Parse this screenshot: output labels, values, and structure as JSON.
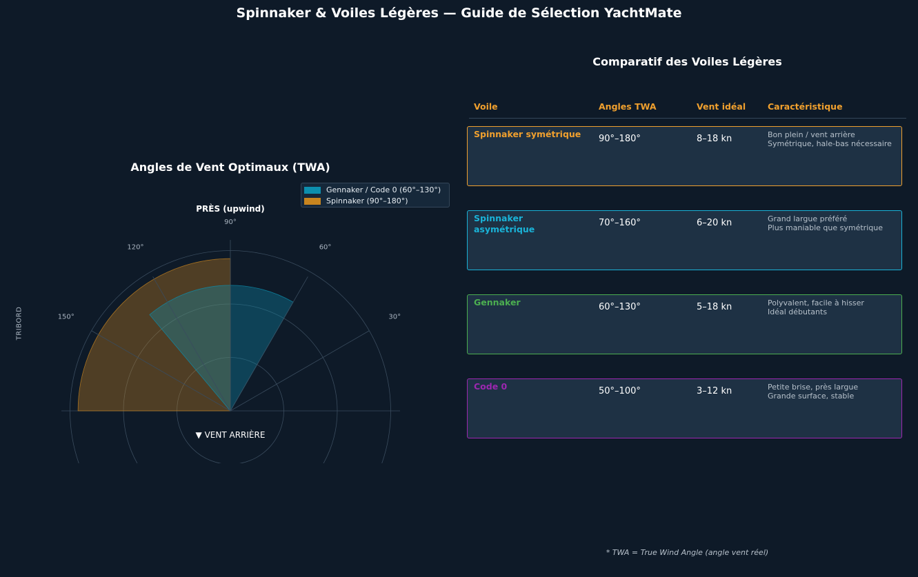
{
  "title": "Spinnaker & Voiles Légères — Guide de Sélection YachtMate",
  "chart_data": {
    "type": "polar-sector",
    "title": "Angles de Vent Optimaux (TWA)",
    "top_label": "PRÈS (upwind)",
    "bottom_label": "▼ VENT ARRIÈRE",
    "side_label": "TRIBORD",
    "angle_ticks": [
      "30°",
      "60°",
      "90°",
      "120°",
      "150°"
    ],
    "rings": [
      1,
      2,
      3
    ],
    "series": [
      {
        "name": "Gennaker / Code 0 (60°–130°)",
        "from_deg": 60,
        "to_deg": 130,
        "radius": 2.35,
        "color": "#0d8fae"
      },
      {
        "name": "Spinnaker (90°–180°)",
        "from_deg": 90,
        "to_deg": 180,
        "radius": 2.85,
        "color": "#c8851f"
      }
    ],
    "legend": "top-right"
  },
  "table": {
    "title": "Comparatif des Voiles Légères",
    "headers": [
      "Voile",
      "Angles TWA",
      "Vent idéal",
      "Caractéristique"
    ],
    "header_color": "#f0a02e",
    "rows": [
      {
        "name": "Spinnaker symétrique",
        "angles": "90°–180°",
        "wind": "8–18 kn",
        "char1": "Bon plein / vent arrière",
        "char2": "Symétrique, hale-bas nécessaire",
        "color": "#f0a02e"
      },
      {
        "name": "Spinnaker asymétrique",
        "angles": "70°–160°",
        "wind": "6–20 kn",
        "char1": "Grand largue préféré",
        "char2": "Plus maniable que symétrique",
        "color": "#1ab3d8"
      },
      {
        "name": "Gennaker",
        "angles": "60°–130°",
        "wind": "5–18 kn",
        "char1": "Polyvalent, facile à hisser",
        "char2": "Idéal débutants",
        "color": "#4caf50"
      },
      {
        "name": "Code 0",
        "angles": "50°–100°",
        "wind": "3–12 kn",
        "char1": "Petite brise, près largue",
        "char2": "Grande surface, stable",
        "color": "#9c27b0"
      }
    ]
  },
  "footnote": "* TWA = True Wind Angle (angle vent réel)"
}
